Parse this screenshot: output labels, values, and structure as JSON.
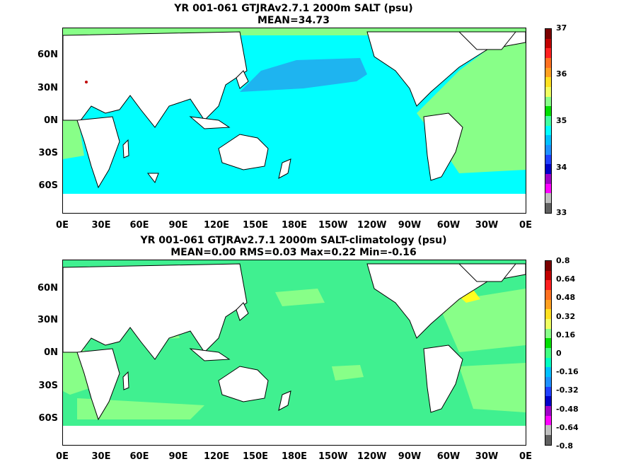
{
  "panel1": {
    "title_line1": "YR 001-061 GTJRAv2.7.1 2000m SALT (psu)",
    "title_line2": "MEAN=34.73",
    "colorbar_labels": [
      "37",
      "36",
      "35",
      "34",
      "33"
    ],
    "colorbar_colors": [
      "#7a0000",
      "#c00000",
      "#ff2020",
      "#ff7020",
      "#ffa020",
      "#ffe020",
      "#f0ff60",
      "#88ff88",
      "#00dd00",
      "#40ffa0",
      "#00ffff",
      "#00c0ff",
      "#1e90ff",
      "#2040ff",
      "#0000c8",
      "#a000c8",
      "#ff00ff",
      "#c0c0c0",
      "#606060"
    ],
    "ocean_color": "#00ffff",
    "deep_color": "#1eb4f0",
    "warm_color": "#88ff88"
  },
  "panel2": {
    "title_line1": "YR 001-061 GTJRAv2.7.1 2000m SALT-climatology (psu)",
    "title_line2": "MEAN=0.00   RMS=0.03   Max=0.22   Min=-0.16",
    "colorbar_labels": [
      "0.8",
      "0.64",
      "0.48",
      "0.32",
      "0.16",
      "0",
      "-0.16",
      "-0.32",
      "-0.48",
      "-0.64",
      "-0.8"
    ],
    "colorbar_colors": [
      "#7a0000",
      "#c00000",
      "#ff2020",
      "#ff7020",
      "#ffa020",
      "#ffe020",
      "#f0ff60",
      "#88ff88",
      "#00dd00",
      "#40ff80",
      "#00ffc0",
      "#00c0ff",
      "#1e90ff",
      "#2040ff",
      "#0000c8",
      "#a000c8",
      "#ff00ff",
      "#c0c0c0",
      "#606060"
    ],
    "ocean_color": "#40f090",
    "warm_color": "#88ff88",
    "hot_color": "#ffff20"
  },
  "lat_labels": [
    "60N",
    "30N",
    "0N",
    "30S",
    "60S"
  ],
  "lon_labels": [
    "0E",
    "30E",
    "60E",
    "90E",
    "120E",
    "150E",
    "180E",
    "150W",
    "120W",
    "90W",
    "60W",
    "30W",
    "0E"
  ]
}
